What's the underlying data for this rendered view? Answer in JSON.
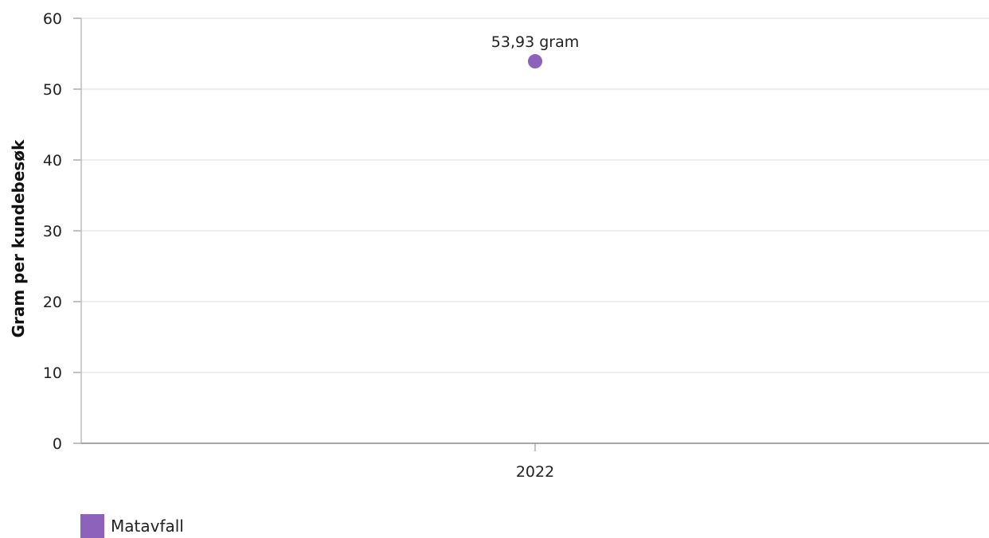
{
  "chart_data": {
    "type": "scatter",
    "title": "",
    "xlabel": "",
    "ylabel": "Gram per kundebesøk",
    "categories": [
      "2022"
    ],
    "ylim": [
      0,
      60
    ],
    "yticks": [
      0,
      10,
      20,
      30,
      40,
      50,
      60
    ],
    "grid": true,
    "legend_position": "bottom-left",
    "series": [
      {
        "name": "Matavfall",
        "color": "#8c62bb",
        "values": [
          53.93
        ],
        "labels": [
          "53,93 gram"
        ]
      }
    ]
  }
}
